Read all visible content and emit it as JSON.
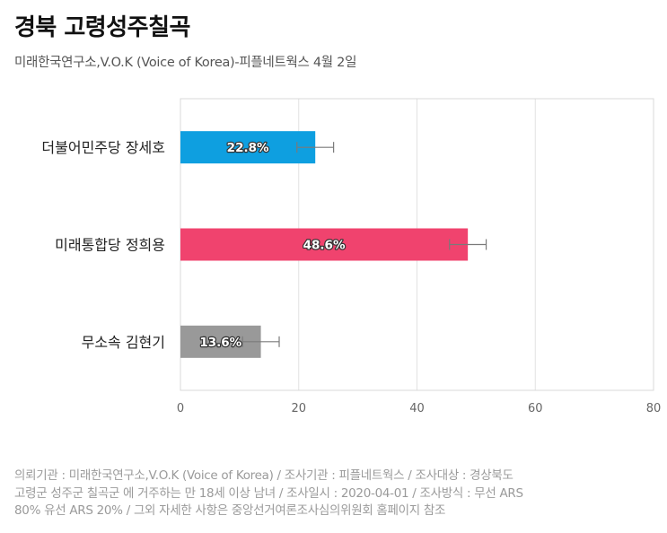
{
  "header": {
    "title": "경북 고령성주칠곡",
    "subtitle": "미래한국연구소,V.O.K (Voice of Korea)-피플네트웍스 4월 2일"
  },
  "chart_data": {
    "type": "bar",
    "orientation": "horizontal",
    "categories": [
      "더불어민주당 장세호",
      "미래통합당 정희용",
      "무소속 김현기"
    ],
    "values": [
      22.8,
      48.6,
      13.6
    ],
    "value_labels": [
      "22.8%",
      "48.6%",
      "13.6%"
    ],
    "error_margin": 3.1,
    "colors": [
      "#0e9fe0",
      "#f0436e",
      "#999999"
    ],
    "title": "경북 고령성주칠곡",
    "subtitle": "미래한국연구소,V.O.K (Voice of Korea)-피플네트웍스 4월 2일",
    "xlabel": "",
    "ylabel": "",
    "xlim": [
      0,
      80
    ],
    "xticks": [
      0,
      20,
      40,
      60,
      80
    ],
    "grid": true,
    "legend": "none"
  },
  "footnote": {
    "lines": [
      "의뢰기관 : 미래한국연구소,V.O.K (Voice of Korea) / 조사기관 : 피플네트웍스 / 조사대상 : 경상북도",
      "고령군 성주군 칠곡군 에 거주하는 만 18세 이상 남녀 / 조사일시 : 2020-04-01 / 조사방식 : 무선 ARS",
      "80% 유선 ARS 20% / 그외 자세한 사항은 중앙선거여론조사심의위원회 홈페이지 참조"
    ]
  }
}
